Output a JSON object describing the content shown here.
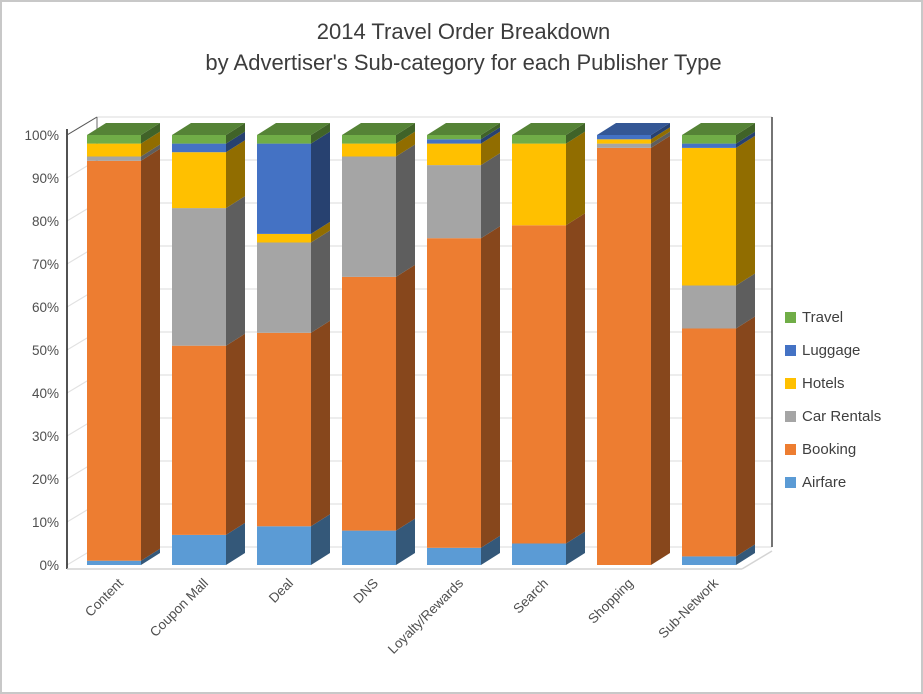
{
  "title": {
    "line1": "2014 Travel Order Breakdown",
    "line2": "by Advertiser's Sub-category for each Publisher Type"
  },
  "chart_data": {
    "type": "bar",
    "variant": "100-percent-stacked-column-3d",
    "title": "2014 Travel Order Breakdown\nby Advertiser's Sub-category for each Publisher Type",
    "xlabel": "",
    "ylabel": "",
    "ylim": [
      0,
      100
    ],
    "grid": true,
    "legend_position": "right",
    "yticks": [
      "0%",
      "10%",
      "20%",
      "30%",
      "40%",
      "50%",
      "60%",
      "70%",
      "80%",
      "90%",
      "100%"
    ],
    "categories": [
      "Content",
      "Coupon Mall",
      "Deal",
      "DNS",
      "Loyalty/Rewards",
      "Search",
      "Shopping",
      "Sub-Network"
    ],
    "series": [
      {
        "name": "Airfare",
        "color": "#5B9BD5",
        "values": [
          1,
          7,
          9,
          8,
          4,
          5,
          0,
          2
        ]
      },
      {
        "name": "Booking",
        "color": "#ED7D31",
        "values": [
          93,
          44,
          45,
          59,
          72,
          74,
          97,
          53
        ]
      },
      {
        "name": "Car Rentals",
        "color": "#A5A5A5",
        "values": [
          1,
          32,
          21,
          28,
          17,
          0,
          1,
          10
        ]
      },
      {
        "name": "Hotels",
        "color": "#FFC000",
        "values": [
          3,
          13,
          2,
          3,
          5,
          19,
          1,
          32
        ]
      },
      {
        "name": "Luggage",
        "color": "#4472C4",
        "values": [
          0,
          2,
          21,
          0,
          1,
          0,
          1,
          1
        ]
      },
      {
        "name": "Travel",
        "color": "#70AD47",
        "values": [
          2,
          2,
          2,
          2,
          1,
          2,
          0,
          2
        ]
      }
    ],
    "legend_order_top_to_bottom": [
      "Travel",
      "Luggage",
      "Hotels",
      "Car Rentals",
      "Booking",
      "Airfare"
    ]
  },
  "colors": {
    "frame_border": "#C8C8C8",
    "background": "#FFFFFF",
    "gridline": "#E2E2E2",
    "axis_line": "#3a3a3a",
    "floor_edge": "#d4d4d4",
    "title_text": "#3C3C3C",
    "axis_text": "#4F4F4F",
    "legend_text": "#3F3F3F"
  }
}
